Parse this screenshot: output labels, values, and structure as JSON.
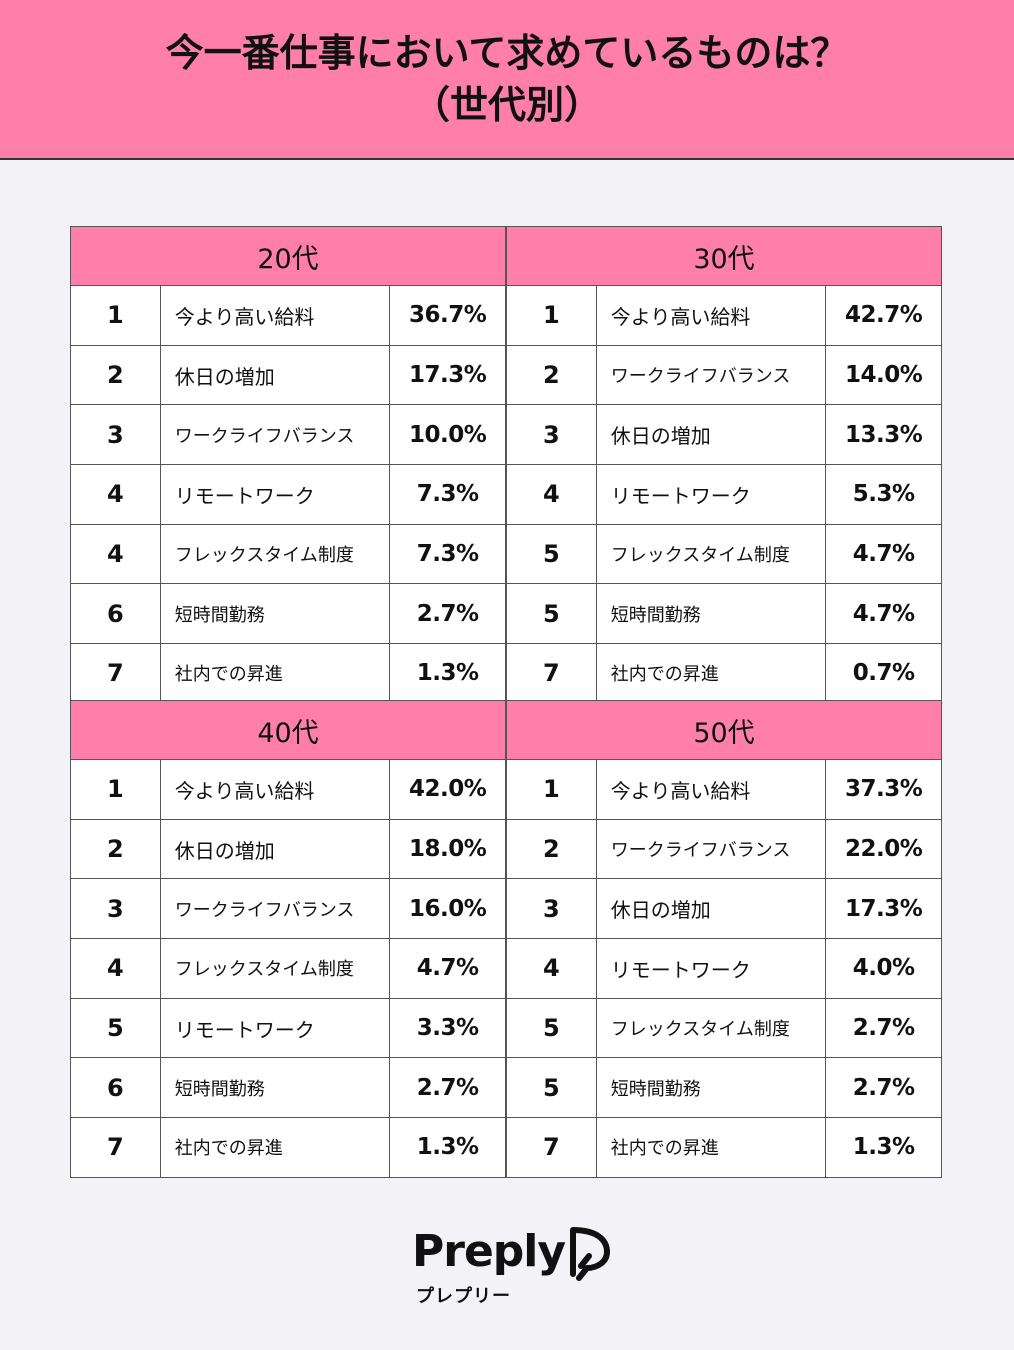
{
  "header": {
    "title_line1": "今一番仕事において求めているものは？",
    "title_line2": "（世代別）"
  },
  "generations": [
    {
      "label": "20代",
      "rows": [
        {
          "rank": "1",
          "item": "今より高い給料",
          "pct": "36.7%"
        },
        {
          "rank": "2",
          "item": "休日の増加",
          "pct": "17.3%"
        },
        {
          "rank": "3",
          "item": "ワークライフバランス",
          "pct": "10.0%"
        },
        {
          "rank": "4",
          "item": "リモートワーク",
          "pct": "7.3%"
        },
        {
          "rank": "4",
          "item": "フレックスタイム制度",
          "pct": "7.3%"
        },
        {
          "rank": "6",
          "item": "短時間勤務",
          "pct": "2.7%"
        },
        {
          "rank": "7",
          "item": "社内での昇進",
          "pct": "1.3%"
        }
      ]
    },
    {
      "label": "30代",
      "rows": [
        {
          "rank": "1",
          "item": "今より高い給料",
          "pct": "42.7%"
        },
        {
          "rank": "2",
          "item": "ワークライフバランス",
          "pct": "14.0%"
        },
        {
          "rank": "3",
          "item": "休日の増加",
          "pct": "13.3%"
        },
        {
          "rank": "4",
          "item": "リモートワーク",
          "pct": "5.3%"
        },
        {
          "rank": "5",
          "item": "フレックスタイム制度",
          "pct": "4.7%"
        },
        {
          "rank": "5",
          "item": "短時間勤務",
          "pct": "4.7%"
        },
        {
          "rank": "7",
          "item": "社内での昇進",
          "pct": "0.7%"
        }
      ]
    },
    {
      "label": "40代",
      "rows": [
        {
          "rank": "1",
          "item": "今より高い給料",
          "pct": "42.0%"
        },
        {
          "rank": "2",
          "item": "休日の増加",
          "pct": "18.0%"
        },
        {
          "rank": "3",
          "item": "ワークライフバランス",
          "pct": "16.0%"
        },
        {
          "rank": "4",
          "item": "フレックスタイム制度",
          "pct": "4.7%"
        },
        {
          "rank": "5",
          "item": "リモートワーク",
          "pct": "3.3%"
        },
        {
          "rank": "6",
          "item": "短時間勤務",
          "pct": "2.7%"
        },
        {
          "rank": "7",
          "item": "社内での昇進",
          "pct": "1.3%"
        }
      ]
    },
    {
      "label": "50代",
      "rows": [
        {
          "rank": "1",
          "item": "今より高い給料",
          "pct": "37.3%"
        },
        {
          "rank": "2",
          "item": "ワークライフバランス",
          "pct": "22.0%"
        },
        {
          "rank": "3",
          "item": "休日の増加",
          "pct": "17.3%"
        },
        {
          "rank": "4",
          "item": "リモートワーク",
          "pct": "4.0%"
        },
        {
          "rank": "5",
          "item": "フレックスタイム制度",
          "pct": "2.7%"
        },
        {
          "rank": "5",
          "item": "短時間勤務",
          "pct": "2.7%"
        },
        {
          "rank": "7",
          "item": "社内での昇進",
          "pct": "1.3%"
        }
      ]
    }
  ],
  "logo": {
    "wordmark": "Preply",
    "subtitle": "プレプリー",
    "icon": "preply-logo-icon"
  }
}
